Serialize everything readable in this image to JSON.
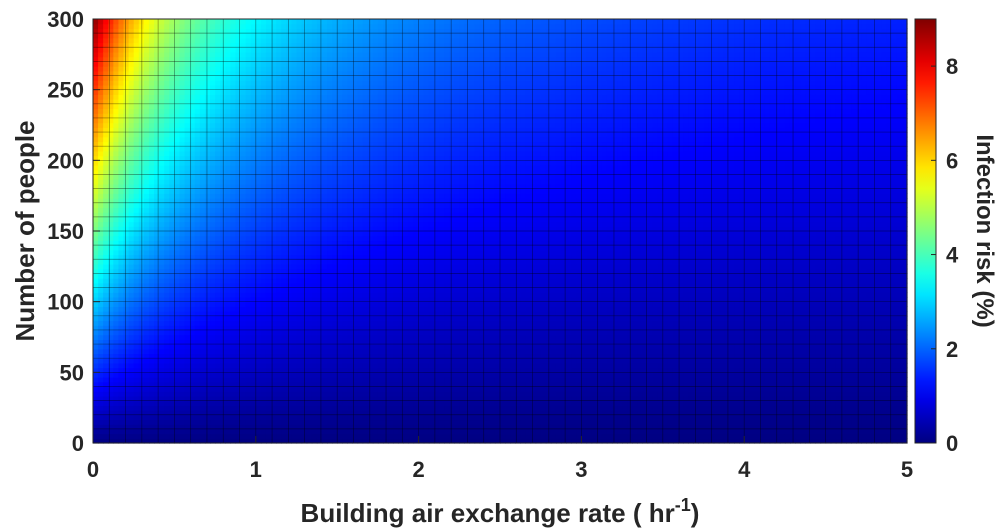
{
  "chart_data": {
    "type": "heatmap",
    "xlabel": "Building air exchange rate ( hr",
    "xlabel_superscript": "-1",
    "xlabel_suffix": ")",
    "ylabel": "Number of people",
    "colorbar_label": "Infection risk (%)",
    "colormap": "jet",
    "xlim": [
      0,
      5
    ],
    "ylim": [
      0,
      300
    ],
    "clim": [
      0,
      9
    ],
    "x_ticks": [
      0,
      1,
      2,
      3,
      4,
      5
    ],
    "x_tick_labels": [
      "0",
      "1",
      "2",
      "3",
      "4",
      "5"
    ],
    "y_ticks": [
      0,
      50,
      100,
      150,
      200,
      250,
      300
    ],
    "y_tick_labels": [
      "0",
      "50",
      "100",
      "150",
      "200",
      "250",
      "300"
    ],
    "colorbar_ticks": [
      0,
      2,
      4,
      6,
      8
    ],
    "colorbar_tick_labels": [
      "0",
      "2",
      "4",
      "6",
      "8"
    ],
    "grid_x_cells": 50,
    "grid_y_cells": 30,
    "sample_values": [
      {
        "people": 300,
        "ach": 0,
        "risk": 9.0
      },
      {
        "people": 250,
        "ach": 0,
        "risk": 7.5
      },
      {
        "people": 200,
        "ach": 0,
        "risk": 6.0
      },
      {
        "people": 150,
        "ach": 0,
        "risk": 4.5
      },
      {
        "people": 100,
        "ach": 0,
        "risk": 3.0
      },
      {
        "people": 50,
        "ach": 0,
        "risk": 1.5
      },
      {
        "people": 300,
        "ach": 0.5,
        "risk": 5.5
      },
      {
        "people": 300,
        "ach": 1,
        "risk": 3.5
      },
      {
        "people": 300,
        "ach": 2,
        "risk": 2.0
      },
      {
        "people": 300,
        "ach": 5,
        "risk": 0.9
      }
    ]
  }
}
